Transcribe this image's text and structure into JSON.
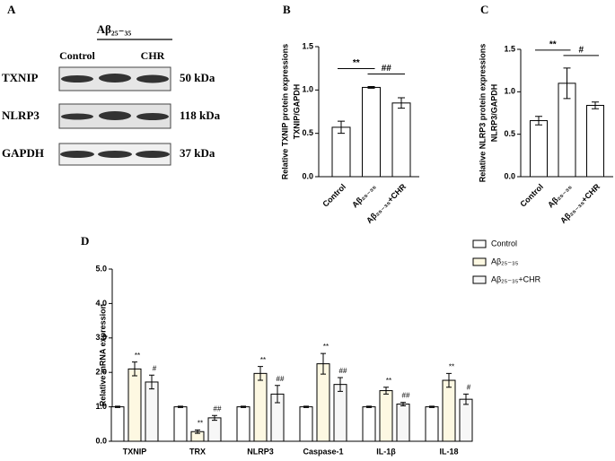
{
  "blot": {
    "panel": "A",
    "group_label": "Aβ₂₅₋₃₅",
    "columns": [
      "Control",
      "CHR"
    ],
    "rows": [
      {
        "protein": "TXNIP",
        "size": "50 kDa"
      },
      {
        "protein": "NLRP3",
        "size": "118 kDa"
      },
      {
        "protein": "GAPDH",
        "size": "37 kDa"
      }
    ]
  },
  "chart_data": [
    {
      "type": "bar",
      "panel": "B",
      "y_label": [
        "Relative TXNIP protein expressions",
        "TXNIP/GAPDH"
      ],
      "categories": [
        "Control",
        "Aβ₂₅₋₃₅",
        "Aβ₂₅₋₃₅+CHR"
      ],
      "values": [
        0.57,
        1.03,
        0.85
      ],
      "errors": [
        0.07,
        0.01,
        0.06
      ],
      "color": "#ffffff",
      "ylim": [
        0,
        1.5
      ],
      "yticks": [
        {
          "value": 0,
          "label": "0.0"
        },
        {
          "value": 0.5,
          "label": "0.5"
        },
        {
          "value": 1,
          "label": "1.0"
        },
        {
          "value": 1.5,
          "label": "1.5"
        }
      ],
      "brackets": [
        "**",
        "##"
      ]
    },
    {
      "type": "bar",
      "panel": "C",
      "y_label": [
        "Relative NLRP3  protein expressions",
        "NLRP3/GAPDH"
      ],
      "categories": [
        "Control",
        "Aβ₂₅₋₃₅",
        "Aβ₂₅₋₃₅+CHR"
      ],
      "values": [
        0.66,
        1.1,
        0.84
      ],
      "errors": [
        0.05,
        0.18,
        0.04
      ],
      "color": "#ffffff",
      "ylim": [
        0,
        1.5
      ],
      "yticks": [
        {
          "value": 0,
          "label": "0.0"
        },
        {
          "value": 0.5,
          "label": "0.5"
        },
        {
          "value": 1,
          "label": "1.0"
        },
        {
          "value": 1.5,
          "label": "1.5"
        }
      ],
      "brackets": [
        "**",
        "#"
      ]
    },
    {
      "type": "grouped-bar",
      "panel": "D",
      "y_label": [
        "Relative mRNA expression"
      ],
      "categories": [
        "TXNIP",
        "TRX",
        "NLRP3",
        "Caspase-1",
        "IL-1β",
        "IL-18"
      ],
      "series": [
        {
          "name": "Control",
          "color": "#ffffff",
          "values": [
            1,
            1,
            1,
            1,
            1,
            1
          ],
          "errors": [
            0.02,
            0.02,
            0.02,
            0.02,
            0.02,
            0.02
          ]
        },
        {
          "name": "Aβ₂₅₋₃₅",
          "color": "#fdf8e2",
          "values": [
            2.1,
            0.28,
            1.97,
            2.25,
            1.47,
            1.77
          ],
          "errors": [
            0.2,
            0.05,
            0.2,
            0.3,
            0.1,
            0.2
          ],
          "significance": [
            "**",
            "**",
            "**",
            "**",
            "**",
            "**"
          ]
        },
        {
          "name": "Aβ₂₅₋₃₅+CHR",
          "color": "#f7f7f7",
          "values": [
            1.72,
            0.68,
            1.37,
            1.65,
            1.08,
            1.22
          ],
          "errors": [
            0.2,
            0.07,
            0.25,
            0.2,
            0.05,
            0.15
          ],
          "significance": [
            "#",
            "##",
            "##",
            "##",
            "##",
            "#"
          ]
        }
      ],
      "ylim": [
        0,
        5
      ],
      "yticks": [
        {
          "value": 0,
          "label": "0.0"
        },
        {
          "value": 1,
          "label": "1.0"
        },
        {
          "value": 2,
          "label": "2.0"
        },
        {
          "value": 3,
          "label": "3.0"
        },
        {
          "value": 4,
          "label": "4.0"
        },
        {
          "value": 5,
          "label": "5.0"
        }
      ],
      "legend": "top-right"
    }
  ]
}
